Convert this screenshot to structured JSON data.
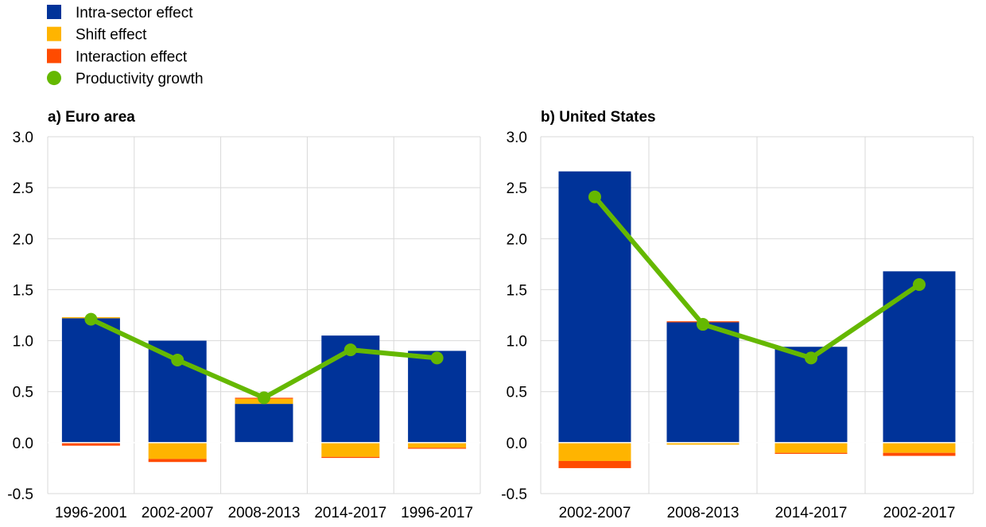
{
  "legend": [
    {
      "label": "Intra-sector effect",
      "color": "#003399",
      "marker": "square"
    },
    {
      "label": "Shift effect",
      "color": "#FFB400",
      "marker": "square"
    },
    {
      "label": "Interaction effect",
      "color": "#FF4B00",
      "marker": "square"
    },
    {
      "label": "Productivity growth",
      "color": "#65B800",
      "marker": "circle"
    }
  ],
  "chart_data": [
    {
      "type": "bar",
      "stacked": true,
      "title": "a) Euro area",
      "categories": [
        "1996-2001",
        "2002-2007",
        "2008-2013",
        "2014-2017",
        "1996-2017"
      ],
      "ylim": [
        -0.5,
        3.0
      ],
      "yticks": [
        "3.0",
        "2.5",
        "2.0",
        "1.5",
        "1.0",
        "0.5",
        "0.0",
        "-0.5"
      ],
      "grid": true,
      "series": [
        {
          "name": "Intra-sector effect",
          "kind": "bar",
          "color": "#003399",
          "values": [
            1.22,
            1.0,
            0.38,
            1.05,
            0.9
          ]
        },
        {
          "name": "Shift effect",
          "kind": "bar",
          "color": "#FFB400",
          "values": [
            0.01,
            -0.16,
            0.05,
            -0.14,
            -0.05
          ]
        },
        {
          "name": "Interaction effect",
          "kind": "bar",
          "color": "#FF4B00",
          "values": [
            -0.03,
            -0.03,
            0.01,
            -0.01,
            -0.01
          ]
        },
        {
          "name": "Productivity growth",
          "kind": "line",
          "color": "#65B800",
          "values": [
            1.21,
            0.81,
            0.44,
            0.91,
            0.83
          ]
        }
      ]
    },
    {
      "type": "bar",
      "stacked": true,
      "title": "b) United States",
      "categories": [
        "2002-2007",
        "2008-2013",
        "2014-2017",
        "2002-2017"
      ],
      "ylim": [
        -0.5,
        3.0
      ],
      "yticks": [
        "3.0",
        "2.5",
        "2.0",
        "1.5",
        "1.0",
        "0.5",
        "0.0",
        "-0.5"
      ],
      "grid": true,
      "series": [
        {
          "name": "Intra-sector effect",
          "kind": "bar",
          "color": "#003399",
          "values": [
            2.66,
            1.18,
            0.94,
            1.68
          ]
        },
        {
          "name": "Shift effect",
          "kind": "bar",
          "color": "#FFB400",
          "values": [
            -0.18,
            -0.02,
            -0.1,
            -0.1
          ]
        },
        {
          "name": "Interaction effect",
          "kind": "bar",
          "color": "#FF4B00",
          "values": [
            -0.07,
            0.01,
            -0.01,
            -0.03
          ]
        },
        {
          "name": "Productivity growth",
          "kind": "line",
          "color": "#65B800",
          "values": [
            2.41,
            1.16,
            0.83,
            1.55
          ]
        }
      ]
    }
  ]
}
